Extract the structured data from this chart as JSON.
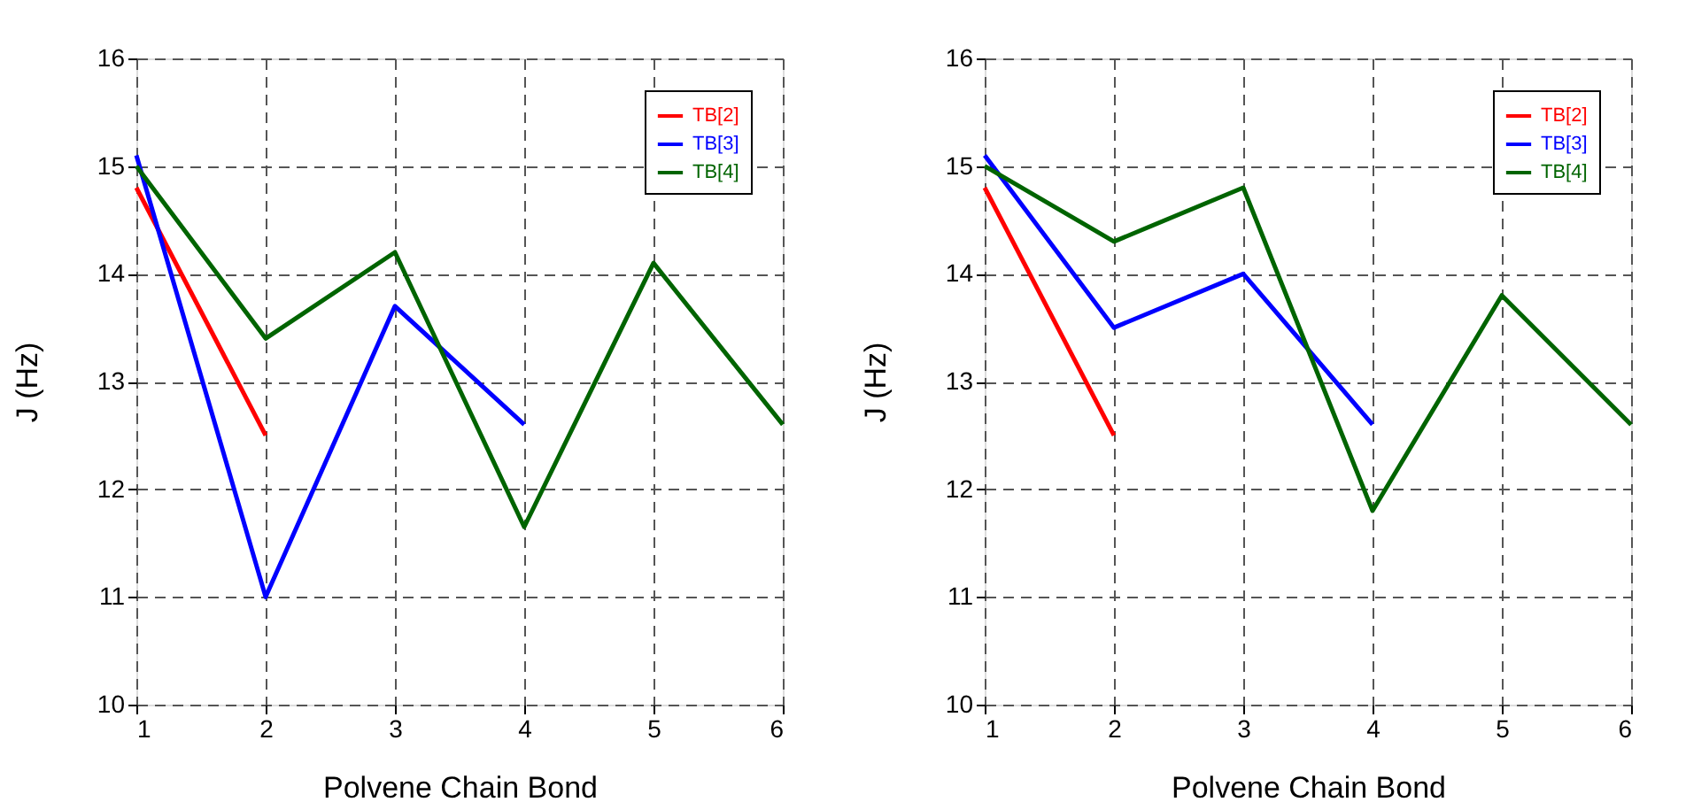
{
  "chart_data": [
    {
      "type": "line",
      "xlabel": "Polvene Chain Bond",
      "ylabel": "J (Hz)",
      "x": [
        1,
        2,
        3,
        4,
        5,
        6
      ],
      "xlim": [
        1,
        6
      ],
      "xticks": [
        1,
        2,
        3,
        4,
        5,
        6
      ],
      "ylim": [
        10,
        16
      ],
      "yticks": [
        10,
        11,
        12,
        13,
        14,
        15,
        16
      ],
      "grid": true,
      "legend": "top right",
      "line_style": "solid",
      "marker": "none",
      "series": [
        {
          "name": "TB[2]",
          "color": "#ff0000",
          "values": [
            14.8,
            12.5,
            null,
            null,
            null,
            null
          ]
        },
        {
          "name": "TB[3]",
          "color": "#0000ff",
          "values": [
            15.1,
            11.0,
            13.7,
            12.6,
            null,
            null
          ]
        },
        {
          "name": "TB[4]",
          "color": "#006400",
          "values": [
            15.0,
            13.4,
            14.2,
            11.65,
            14.1,
            12.6
          ]
        }
      ]
    },
    {
      "type": "line",
      "xlabel": "Polvene Chain Bond",
      "ylabel": "J (Hz)",
      "x": [
        1,
        2,
        3,
        4,
        5,
        6
      ],
      "xlim": [
        1,
        6
      ],
      "xticks": [
        1,
        2,
        3,
        4,
        5,
        6
      ],
      "ylim": [
        10,
        16
      ],
      "yticks": [
        10,
        11,
        12,
        13,
        14,
        15,
        16
      ],
      "grid": true,
      "legend": "top right",
      "line_style": "solid",
      "marker": "none",
      "series": [
        {
          "name": "TB[2]",
          "color": "#ff0000",
          "values": [
            14.8,
            12.5,
            null,
            null,
            null,
            null
          ]
        },
        {
          "name": "TB[3]",
          "color": "#0000ff",
          "values": [
            15.1,
            13.5,
            14.0,
            12.6,
            null,
            null
          ]
        },
        {
          "name": "TB[4]",
          "color": "#006400",
          "values": [
            15.0,
            14.3,
            14.8,
            11.8,
            13.8,
            12.6
          ]
        }
      ]
    }
  ]
}
